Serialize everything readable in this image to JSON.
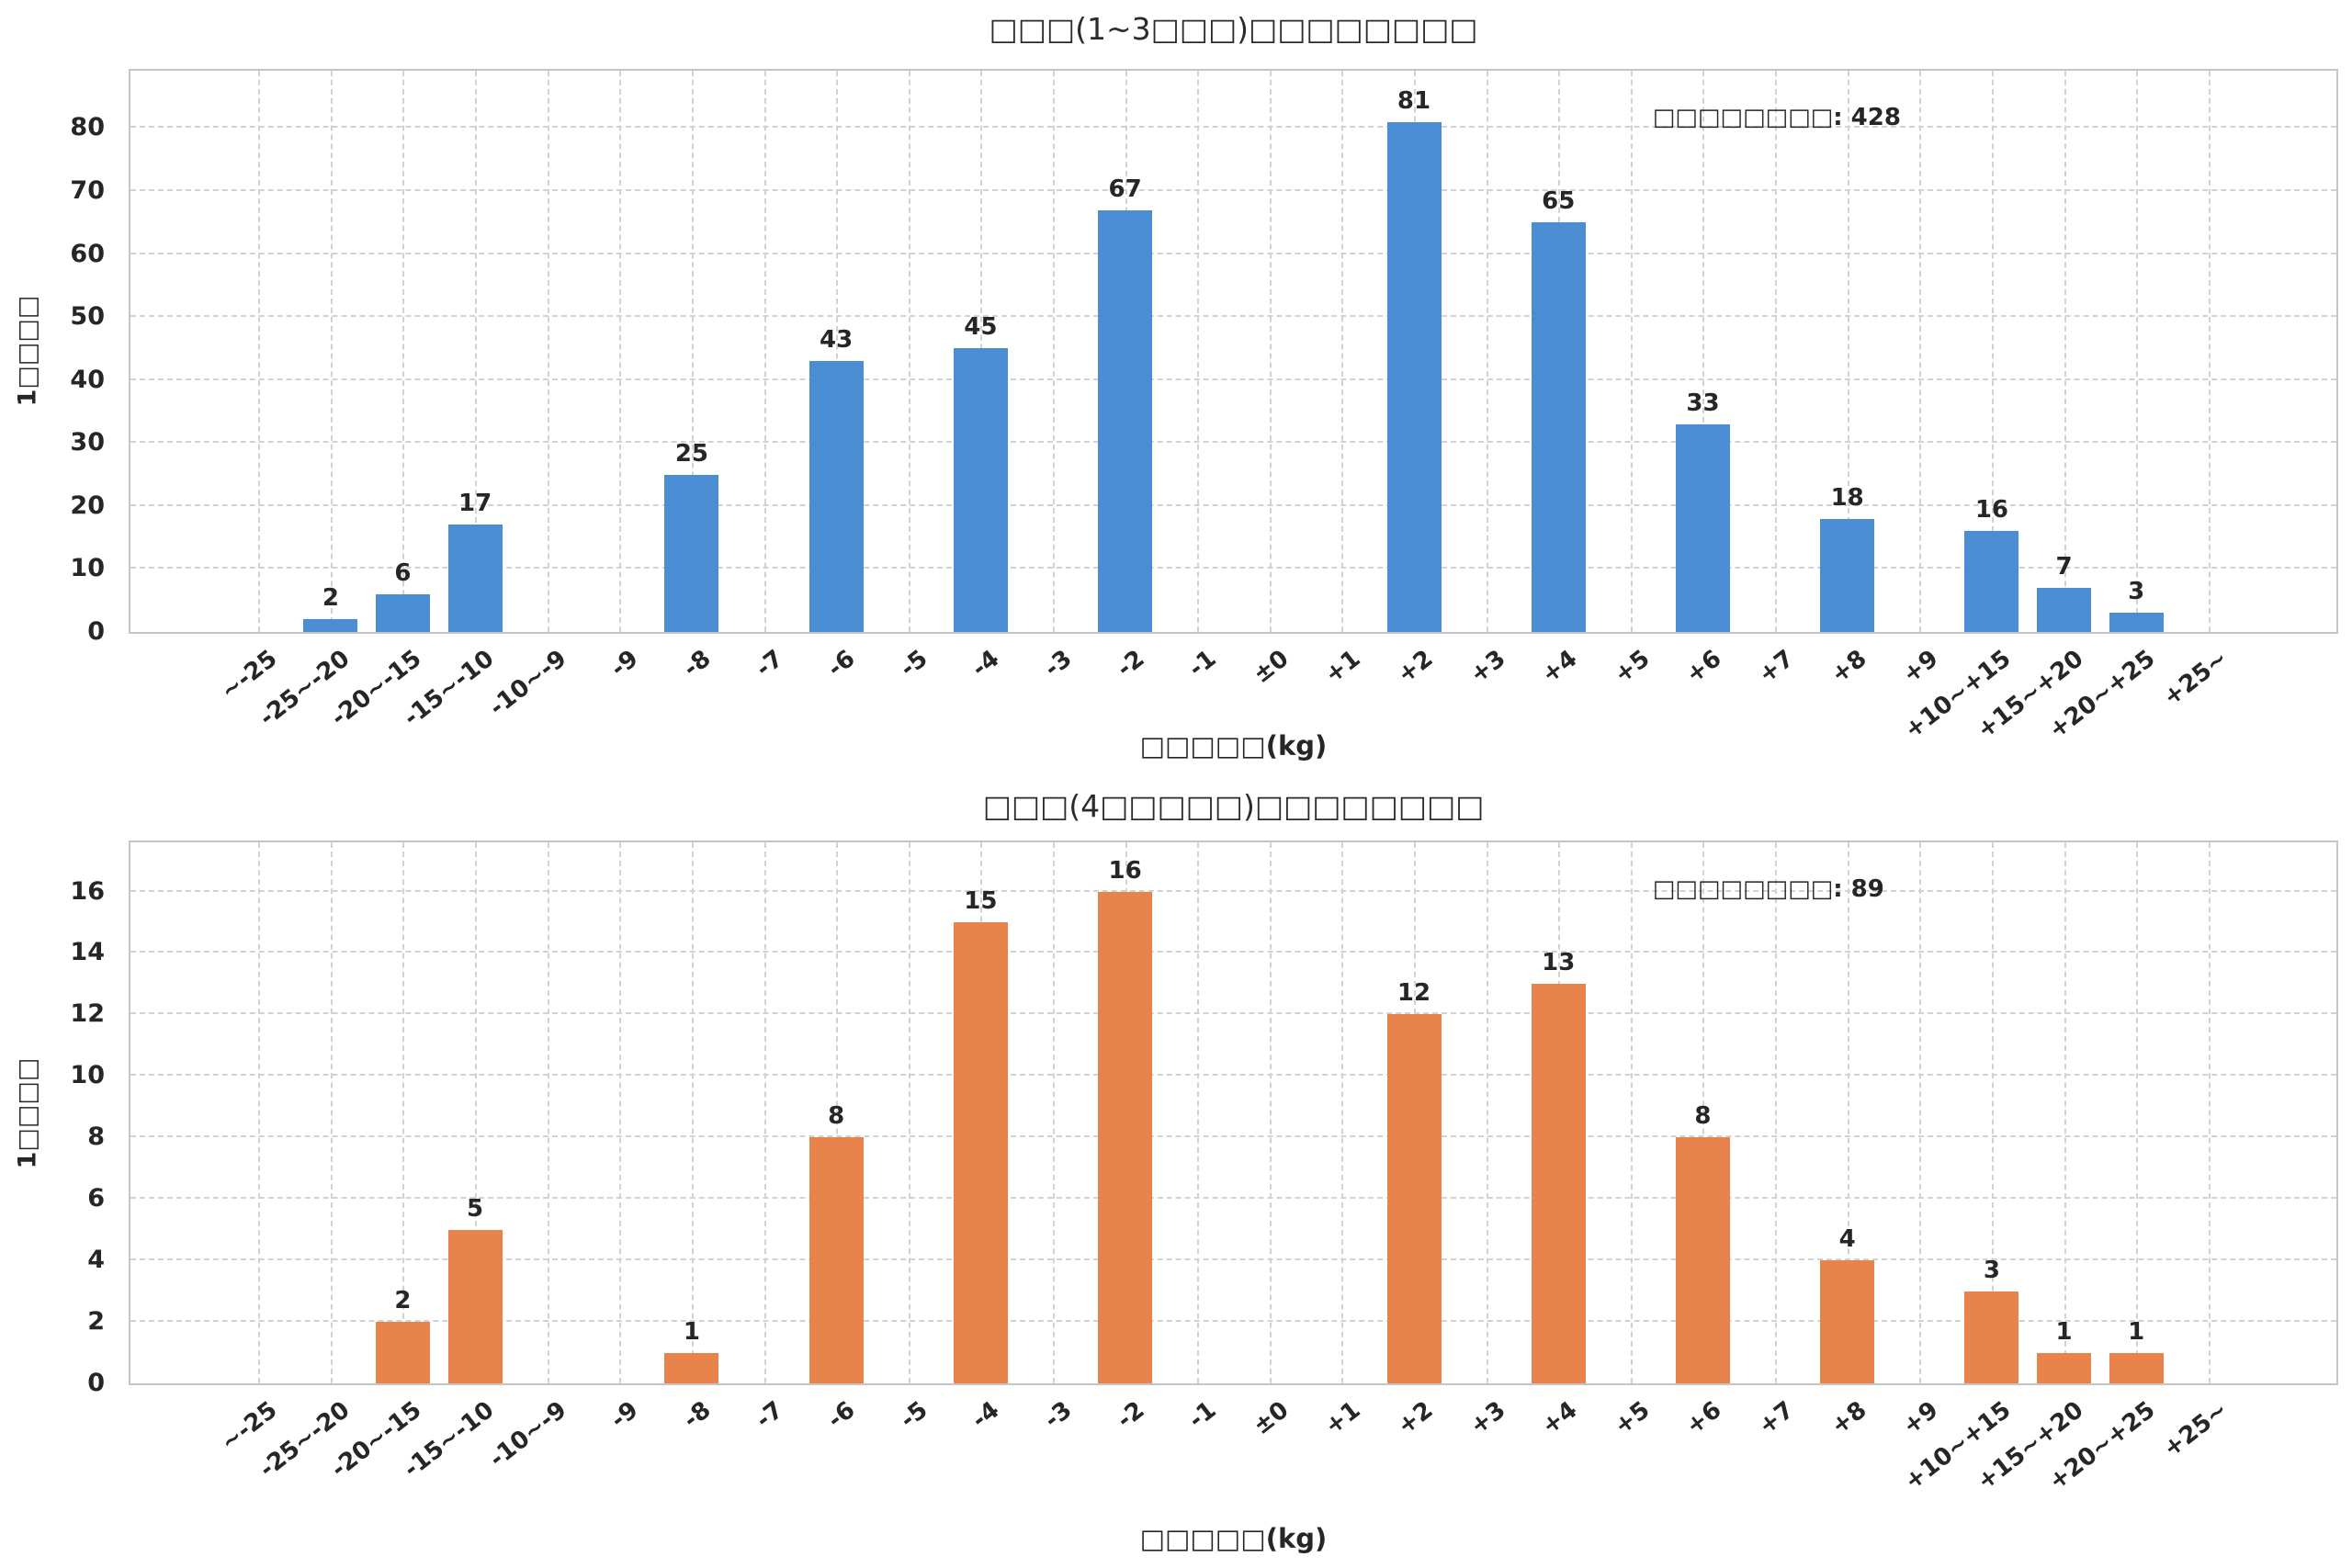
{
  "figure": {
    "background": "#ffffff"
  },
  "chart_data": [
    {
      "type": "bar",
      "title": "□□□(1~3□□□)□□□□□□□□",
      "xlabel": "□□□□□(kg)",
      "ylabel": "1□□□□",
      "annotation": "□□□□□□□□: 428",
      "total": 428,
      "bar_color": "#4a8dd3",
      "grid": "dashed-both",
      "legend": "none",
      "categories": [
        "~-25",
        "-25~-20",
        "-20~-15",
        "-15~-10",
        "-10~-9",
        "-9",
        "-8",
        "-7",
        "-6",
        "-5",
        "-4",
        "-3",
        "-2",
        "-1",
        "±0",
        "+1",
        "+2",
        "+3",
        "+4",
        "+5",
        "+6",
        "+7",
        "+8",
        "+9",
        "+10~+15",
        "+15~+20",
        "+20~+25",
        "+25~"
      ],
      "values": [
        0,
        2,
        6,
        17,
        0,
        0,
        25,
        0,
        43,
        0,
        45,
        0,
        67,
        0,
        0,
        0,
        81,
        0,
        65,
        0,
        33,
        0,
        18,
        0,
        16,
        7,
        3,
        0
      ],
      "yticks": [
        0,
        10,
        20,
        30,
        40,
        50,
        60,
        70,
        80
      ],
      "ylim": [
        0,
        89.1
      ]
    },
    {
      "type": "bar",
      "title": "□□□(4□□□□□)□□□□□□□□",
      "xlabel": "□□□□□(kg)",
      "ylabel": "1□□□□",
      "annotation": "□□□□□□□□: 89",
      "total": 89,
      "bar_color": "#e8834c",
      "grid": "dashed-both",
      "legend": "none",
      "categories": [
        "~-25",
        "-25~-20",
        "-20~-15",
        "-15~-10",
        "-10~-9",
        "-9",
        "-8",
        "-7",
        "-6",
        "-5",
        "-4",
        "-3",
        "-2",
        "-1",
        "±0",
        "+1",
        "+2",
        "+3",
        "+4",
        "+5",
        "+6",
        "+7",
        "+8",
        "+9",
        "+10~+15",
        "+15~+20",
        "+20~+25",
        "+25~"
      ],
      "values": [
        0,
        0,
        2,
        5,
        0,
        0,
        1,
        0,
        8,
        0,
        15,
        0,
        16,
        0,
        0,
        0,
        12,
        0,
        13,
        0,
        8,
        0,
        4,
        0,
        3,
        1,
        1,
        0
      ],
      "yticks": [
        0,
        2,
        4,
        6,
        8,
        10,
        12,
        14,
        16
      ],
      "ylim": [
        0,
        17.6
      ]
    }
  ]
}
